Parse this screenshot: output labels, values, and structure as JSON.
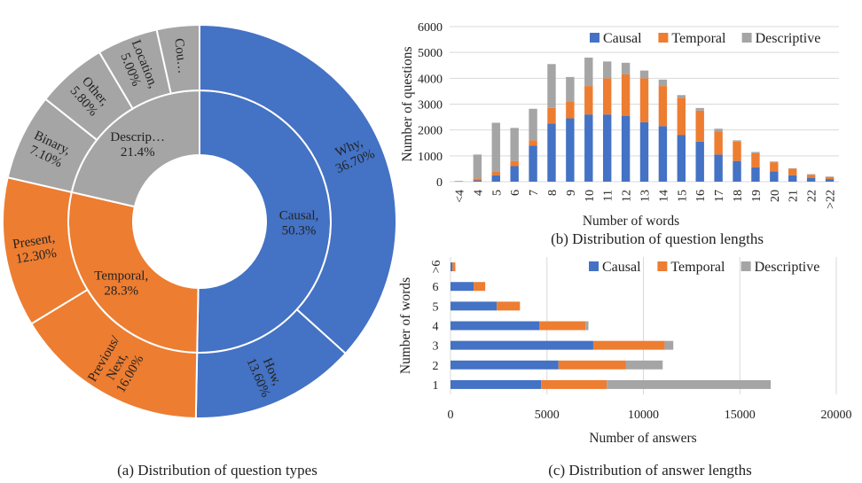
{
  "captions": {
    "a": "(a) Distribution of question types",
    "b": "(b) Distribution of question lengths",
    "c": "(c) Distribution of answer lengths"
  },
  "colors": {
    "causal": "#4472C4",
    "temporal": "#ED7D31",
    "descriptive": "#A5A5A5"
  },
  "chart_data": [
    {
      "type": "pie",
      "subtype": "sunburst",
      "title": "",
      "inner": [
        {
          "label": "Causal,",
          "pct": "50.3%",
          "value": 50.3,
          "color": "#4472C4"
        },
        {
          "label": "Temporal,",
          "pct": "28.3%",
          "value": 28.3,
          "color": "#ED7D31"
        },
        {
          "label": "Descrip…",
          "pct": "21.4%",
          "value": 21.4,
          "color": "#A5A5A5"
        }
      ],
      "outer": [
        {
          "label": "Why,",
          "pct": "36.70%",
          "value": 36.7,
          "color": "#4472C4"
        },
        {
          "label": "How,",
          "pct": "13.60%",
          "value": 13.6,
          "color": "#4472C4"
        },
        {
          "label": "Previous/ Next,",
          "pct": "16.00%",
          "value": 16.0,
          "color": "#ED7D31"
        },
        {
          "label": "Present,",
          "pct": "12.30%",
          "value": 12.3,
          "color": "#ED7D31"
        },
        {
          "label": "Binary,",
          "pct": "7.10%",
          "value": 7.1,
          "color": "#A5A5A5"
        },
        {
          "label": "Other,",
          "pct": "5.80%",
          "value": 5.8,
          "color": "#A5A5A5"
        },
        {
          "label": "Location,",
          "pct": "5.00%",
          "value": 5.0,
          "color": "#A5A5A5"
        },
        {
          "label": "Cou…",
          "pct": "",
          "value": 3.5,
          "color": "#A5A5A5"
        }
      ]
    },
    {
      "type": "bar",
      "stacked": true,
      "orientation": "vertical",
      "xlabel": "Number of words",
      "ylabel": "Number of questions",
      "ylim": [
        0,
        6000
      ],
      "yticks": [
        "0",
        "1000",
        "2000",
        "3000",
        "4000",
        "5000",
        "6000"
      ],
      "categories": [
        "<4",
        "4",
        "5",
        "6",
        "7",
        "8",
        "9",
        "10",
        "11",
        "12",
        "13",
        "14",
        "15",
        "16",
        "17",
        "18",
        "19",
        "20",
        "21",
        "22",
        ">22"
      ],
      "series": [
        {
          "name": "Causal",
          "color": "#4472C4",
          "values": [
            0,
            50,
            250,
            600,
            1400,
            2250,
            2450,
            2600,
            2600,
            2550,
            2300,
            2150,
            1800,
            1550,
            1050,
            800,
            550,
            400,
            250,
            150,
            100
          ]
        },
        {
          "name": "Temporal",
          "color": "#ED7D31",
          "values": [
            0,
            80,
            150,
            200,
            200,
            600,
            650,
            1100,
            1400,
            1600,
            1700,
            1550,
            1450,
            1200,
            900,
            750,
            550,
            350,
            250,
            120,
            80
          ]
        },
        {
          "name": "Descriptive",
          "color": "#A5A5A5",
          "values": [
            30,
            920,
            1880,
            1280,
            1220,
            1700,
            950,
            1100,
            650,
            450,
            300,
            250,
            100,
            100,
            100,
            50,
            50,
            30,
            20,
            20,
            20
          ]
        }
      ],
      "legend": "top-right"
    },
    {
      "type": "bar",
      "stacked": true,
      "orientation": "horizontal",
      "xlabel": "Number of answers",
      "ylabel": "Number of words",
      "xlim": [
        0,
        20000
      ],
      "xticks": [
        "0",
        "5000",
        "10000",
        "15000",
        "20000"
      ],
      "categories": [
        "1",
        "2",
        "3",
        "4",
        "5",
        "6",
        ">6"
      ],
      "series": [
        {
          "name": "Causal",
          "color": "#4472C4",
          "values": [
            4700,
            5600,
            7400,
            4600,
            2400,
            1200,
            100
          ]
        },
        {
          "name": "Temporal",
          "color": "#ED7D31",
          "values": [
            3400,
            3500,
            3700,
            2400,
            1200,
            600,
            150
          ]
        },
        {
          "name": "Descriptive",
          "color": "#A5A5A5",
          "values": [
            8500,
            1900,
            450,
            150,
            0,
            0,
            0
          ]
        }
      ],
      "legend": "top-right"
    }
  ]
}
